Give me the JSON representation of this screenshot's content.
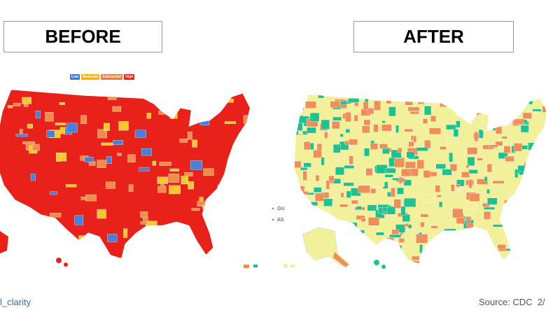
{
  "before": {
    "title": "BEFORE",
    "legend": [
      "Low",
      "Moderate",
      "Substantial",
      "High"
    ]
  },
  "after": {
    "title": "AFTER",
    "territories": [
      "GU",
      "AS"
    ]
  },
  "footer": {
    "left": "l_clarity",
    "right": "Source: CDC  2/"
  }
}
